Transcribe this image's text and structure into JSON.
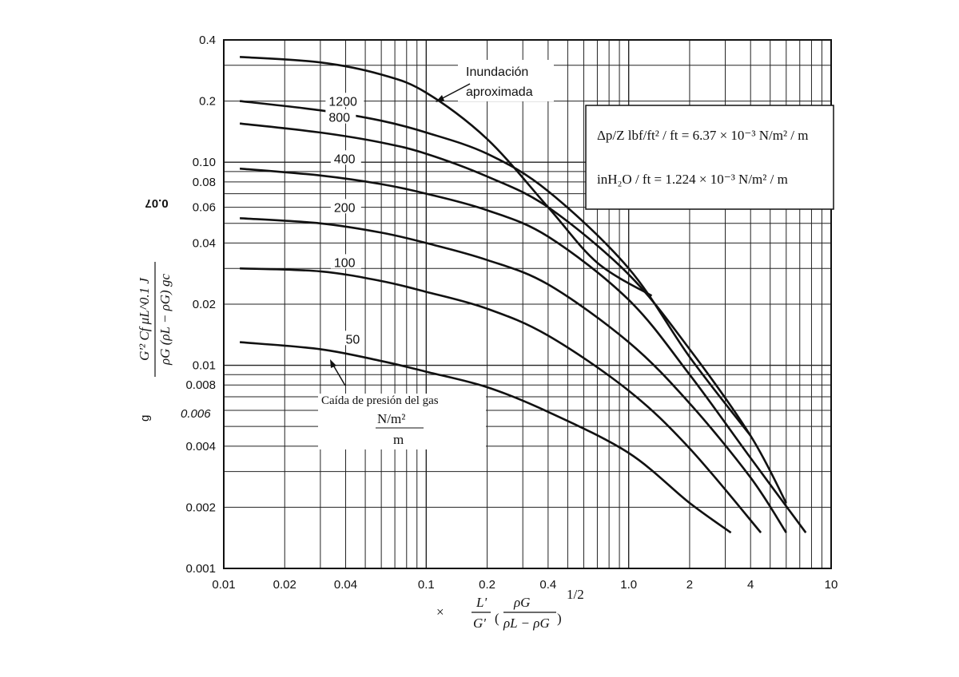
{
  "chart_data": {
    "type": "line",
    "x_scale": "log",
    "y_scale": "log",
    "xlim": [
      0.01,
      10
    ],
    "ylim": [
      0.001,
      0.4
    ],
    "grid": true,
    "x_tick_labels": [
      "0.01",
      "0.02",
      "0.04",
      "0.1",
      "0.2",
      "0.4",
      "1.0",
      "2",
      "4",
      "10"
    ],
    "x_tick_values": [
      0.01,
      0.02,
      0.04,
      0.1,
      0.2,
      0.4,
      1.0,
      2,
      4,
      10
    ],
    "y_tick_labels": [
      "0.4",
      "0.2",
      "0.10",
      "0.08",
      "0.06",
      "0.04",
      "0.02",
      "0.01",
      "0.008",
      "0.004",
      "0.002",
      "0.001"
    ],
    "y_tick_values": [
      0.4,
      0.2,
      0.1,
      0.08,
      0.06,
      0.04,
      0.02,
      0.01,
      0.008,
      0.004,
      0.002,
      0.001
    ],
    "stray_label_top": "0.07",
    "stray_label_small": "0.006",
    "ylabel": {
      "numerator": "G'² Cf μL^0.1 J",
      "denominator": "ρG (ρL − ρG) gc"
    },
    "xlabel": {
      "fraction_top": "L'",
      "fraction_bottom": "G'",
      "paren_top": "ρG",
      "paren_bottom": "ρL − ρG",
      "exponent": "1/2",
      "prefix": "×"
    },
    "annotations": {
      "flooding": [
        "Inundación",
        "aproximada"
      ],
      "pressure_drop": [
        "Caída de presión del gas",
        "N/m²",
        "m"
      ],
      "conversion_line1": "Δp/Z  lbf/ft² / ft = 6.37 × 10⁻³ N/m² / m",
      "conversion_line2": "inH₂O / ft = 1.224 × 10⁻³ N/m² / m"
    },
    "series": [
      {
        "name": "Inundación aproximada",
        "x": [
          0.012,
          0.03,
          0.06,
          0.1,
          0.2,
          0.4,
          0.7,
          1.3
        ],
        "y": [
          0.33,
          0.31,
          0.27,
          0.22,
          0.13,
          0.06,
          0.032,
          0.022
        ]
      },
      {
        "name": "1200",
        "x": [
          0.012,
          0.03,
          0.06,
          0.1,
          0.2,
          0.4,
          1.0,
          2,
          4
        ],
        "y": [
          0.2,
          0.18,
          0.16,
          0.14,
          0.11,
          0.072,
          0.03,
          0.011,
          0.0045
        ]
      },
      {
        "name": "800",
        "x": [
          0.012,
          0.03,
          0.06,
          0.1,
          0.2,
          0.4,
          1.0,
          2,
          4,
          6
        ],
        "y": [
          0.155,
          0.14,
          0.125,
          0.11,
          0.085,
          0.06,
          0.028,
          0.012,
          0.0045,
          0.0021
        ]
      },
      {
        "name": "400",
        "x": [
          0.012,
          0.03,
          0.06,
          0.1,
          0.2,
          0.4,
          1.0,
          2,
          4,
          7.5
        ],
        "y": [
          0.093,
          0.086,
          0.078,
          0.07,
          0.058,
          0.043,
          0.021,
          0.009,
          0.0035,
          0.0015
        ]
      },
      {
        "name": "200",
        "x": [
          0.012,
          0.03,
          0.06,
          0.1,
          0.2,
          0.4,
          1.0,
          2,
          4,
          6
        ],
        "y": [
          0.053,
          0.05,
          0.045,
          0.04,
          0.033,
          0.025,
          0.013,
          0.0065,
          0.0028,
          0.0015
        ]
      },
      {
        "name": "100",
        "x": [
          0.012,
          0.03,
          0.06,
          0.1,
          0.2,
          0.4,
          1.0,
          2,
          4.5
        ],
        "y": [
          0.03,
          0.029,
          0.026,
          0.023,
          0.019,
          0.014,
          0.0075,
          0.0039,
          0.0015
        ]
      },
      {
        "name": "50",
        "x": [
          0.012,
          0.03,
          0.06,
          0.1,
          0.2,
          0.4,
          1.0,
          2,
          3.2
        ],
        "y": [
          0.013,
          0.012,
          0.0105,
          0.0093,
          0.0078,
          0.0059,
          0.0037,
          0.0021,
          0.0015
        ]
      }
    ],
    "curve_labels": [
      {
        "text": "1200",
        "x": 0.033,
        "y": 0.19
      },
      {
        "text": "800",
        "x": 0.033,
        "y": 0.158
      },
      {
        "text": "400",
        "x": 0.035,
        "y": 0.099
      },
      {
        "text": "200",
        "x": 0.035,
        "y": 0.057
      },
      {
        "text": "100",
        "x": 0.035,
        "y": 0.0305
      },
      {
        "text": "50",
        "x": 0.04,
        "y": 0.0128
      }
    ]
  }
}
